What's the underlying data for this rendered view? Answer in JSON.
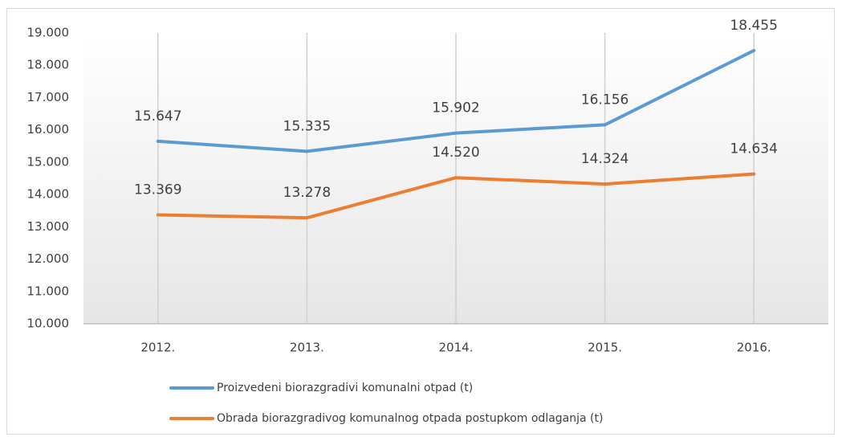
{
  "chart_data": {
    "type": "line",
    "categories": [
      "2012.",
      "2013.",
      "2014.",
      "2015.",
      "2016."
    ],
    "series": [
      {
        "name": "Proizvedeni biorazgradivi komunalni otpad (t)",
        "color": "#5b9bd5",
        "values": [
          15647,
          15335,
          15902,
          16156,
          18455
        ],
        "value_labels": [
          "15.647",
          "15.335",
          "15.902",
          "16.156",
          "18.455"
        ]
      },
      {
        "name": "Obrada biorazgradivog komunalnog otpada postupkom odlaganja (t)",
        "color": "#ed7d31",
        "values": [
          13369,
          13278,
          14520,
          14324,
          14634
        ],
        "value_labels": [
          "13.369",
          "13.278",
          "14.520",
          "14.324",
          "14.634"
        ]
      }
    ],
    "ylim": [
      10000,
      19000
    ],
    "yticks": [
      {
        "value": 10000,
        "label": "10.000"
      },
      {
        "value": 11000,
        "label": "11.000"
      },
      {
        "value": 12000,
        "label": "12.000"
      },
      {
        "value": 13000,
        "label": "13.000"
      },
      {
        "value": 14000,
        "label": "14.000"
      },
      {
        "value": 15000,
        "label": "15.000"
      },
      {
        "value": 16000,
        "label": "16.000"
      },
      {
        "value": 17000,
        "label": "17.000"
      },
      {
        "value": 18000,
        "label": "18.000"
      },
      {
        "value": 19000,
        "label": "19.000"
      }
    ],
    "grid": false,
    "legend": "bottom"
  }
}
